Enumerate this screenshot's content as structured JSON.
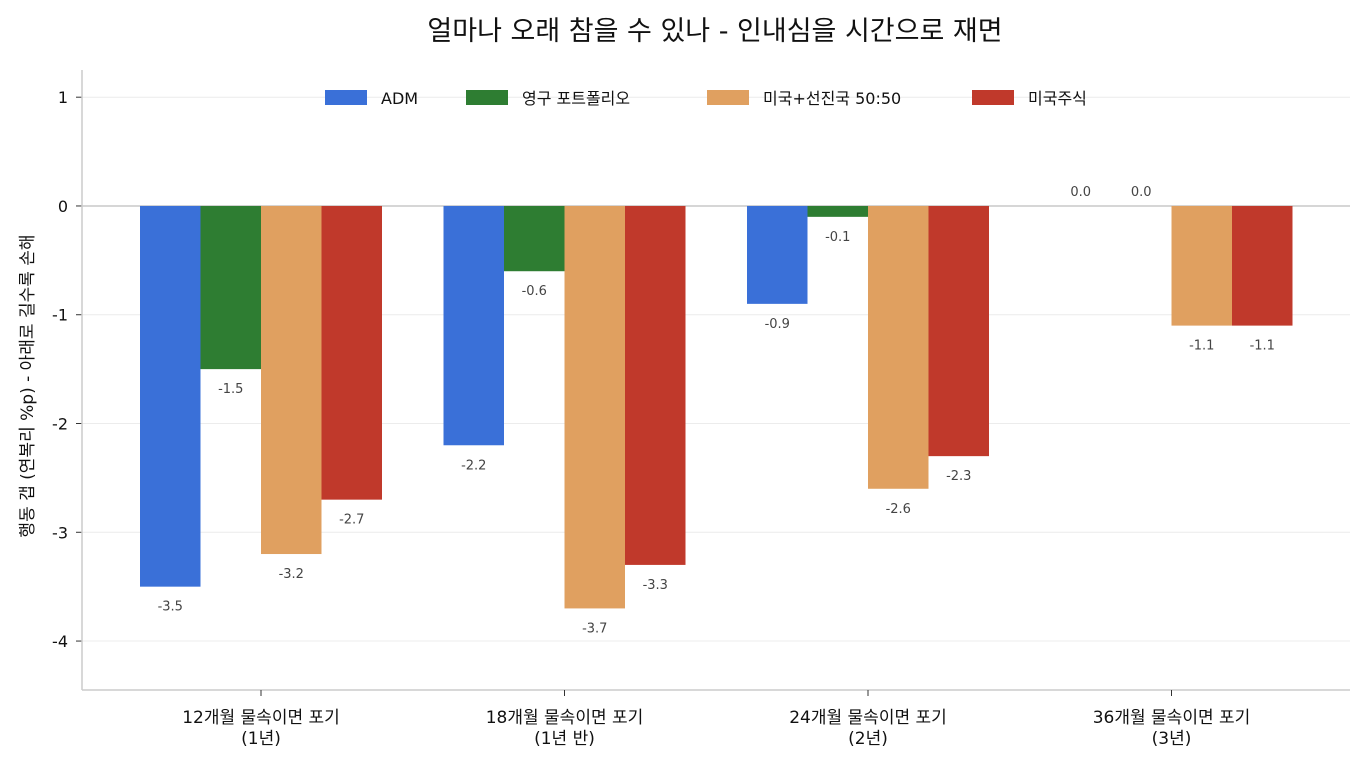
{
  "chart_data": {
    "type": "bar",
    "title": "얼마나 오래 참을 수 있나 - 인내심을 시간으로 재면",
    "xlabel": "",
    "ylabel": "행동 갭 (연복리 %p) - 아래로 길수록 손해",
    "ylim": [
      -4.45,
      1.25
    ],
    "yticks": [
      1,
      0,
      -1,
      -2,
      -3,
      -4
    ],
    "ytick_labels": [
      "1",
      "0",
      "-1",
      "-2",
      "-3",
      "-4"
    ],
    "grid": true,
    "legend_position": "top-center",
    "categories": [
      [
        "12개월 물속이면 포기",
        "(1년)"
      ],
      [
        "18개월 물속이면 포기",
        "(1년 반)"
      ],
      [
        "24개월 물속이면 포기",
        "(2년)"
      ],
      [
        "36개월 물속이면 포기",
        "(3년)"
      ]
    ],
    "series": [
      {
        "name": "ADM",
        "color": "#3a70d8",
        "values": [
          -3.5,
          -2.2,
          -0.9,
          0.0
        ],
        "labels": [
          "-3.5",
          "-2.2",
          "-0.9",
          "0.0"
        ]
      },
      {
        "name": "영구 포트폴리오",
        "color": "#2e7d32",
        "values": [
          -1.5,
          -0.6,
          -0.1,
          0.0
        ],
        "labels": [
          "-1.5",
          "-0.6",
          "-0.1",
          "0.0"
        ]
      },
      {
        "name": "미국+선진국 50:50",
        "color": "#e0a060",
        "values": [
          -3.2,
          -3.7,
          -2.6,
          -1.1
        ],
        "labels": [
          "-3.2",
          "-3.7",
          "-2.6",
          "-1.1"
        ]
      },
      {
        "name": "미국주식",
        "color": "#c0392b",
        "values": [
          -2.7,
          -3.3,
          -2.3,
          -1.1
        ],
        "labels": [
          "-2.7",
          "-3.3",
          "-2.3",
          "-1.1"
        ]
      }
    ]
  }
}
